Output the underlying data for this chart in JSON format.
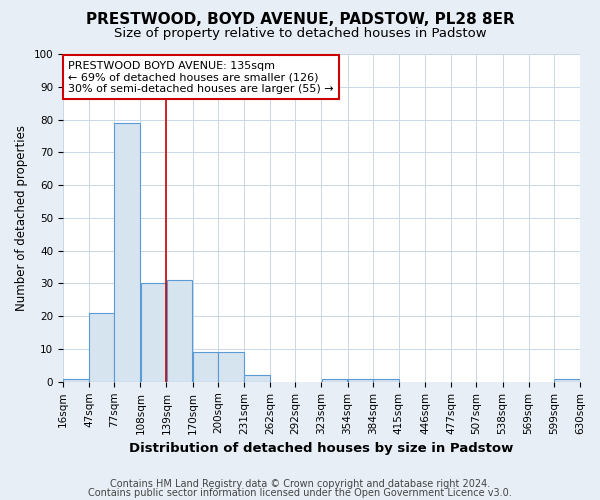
{
  "title": "PRESTWOOD, BOYD AVENUE, PADSTOW, PL28 8ER",
  "subtitle": "Size of property relative to detached houses in Padstow",
  "xlabel": "Distribution of detached houses by size in Padstow",
  "ylabel": "Number of detached properties",
  "footnote1": "Contains HM Land Registry data © Crown copyright and database right 2024.",
  "footnote2": "Contains public sector information licensed under the Open Government Licence v3.0.",
  "annotation_line1": "PRESTWOOD BOYD AVENUE: 135sqm",
  "annotation_line2": "← 69% of detached houses are smaller (126)",
  "annotation_line3": "30% of semi-detached houses are larger (55) →",
  "bar_edges": [
    16,
    47,
    77,
    108,
    139,
    170,
    200,
    231,
    262,
    292,
    323,
    354,
    384,
    415,
    446,
    477,
    507,
    538,
    569,
    599,
    630
  ],
  "bar_heights": [
    1,
    21,
    79,
    30,
    31,
    9,
    9,
    2,
    0,
    0,
    1,
    1,
    1,
    0,
    0,
    0,
    0,
    0,
    0,
    1,
    0
  ],
  "bar_color": "#d6e4f0",
  "bar_edge_color": "#5b9bd5",
  "bar_linewidth": 0.8,
  "red_line_x": 139,
  "red_line_color": "#cc0000",
  "ylim": [
    0,
    100
  ],
  "yticks": [
    0,
    10,
    20,
    30,
    40,
    50,
    60,
    70,
    80,
    90,
    100
  ],
  "figure_bg_color": "#e8eef5",
  "plot_bg_color": "#ffffff",
  "grid_color": "#c8d8e8",
  "annotation_box_color": "#ffffff",
  "annotation_box_edge": "#cc0000",
  "title_fontsize": 11,
  "subtitle_fontsize": 9.5,
  "xlabel_fontsize": 9.5,
  "ylabel_fontsize": 8.5,
  "tick_fontsize": 7.5,
  "annotation_fontsize": 8,
  "footnote_fontsize": 7
}
